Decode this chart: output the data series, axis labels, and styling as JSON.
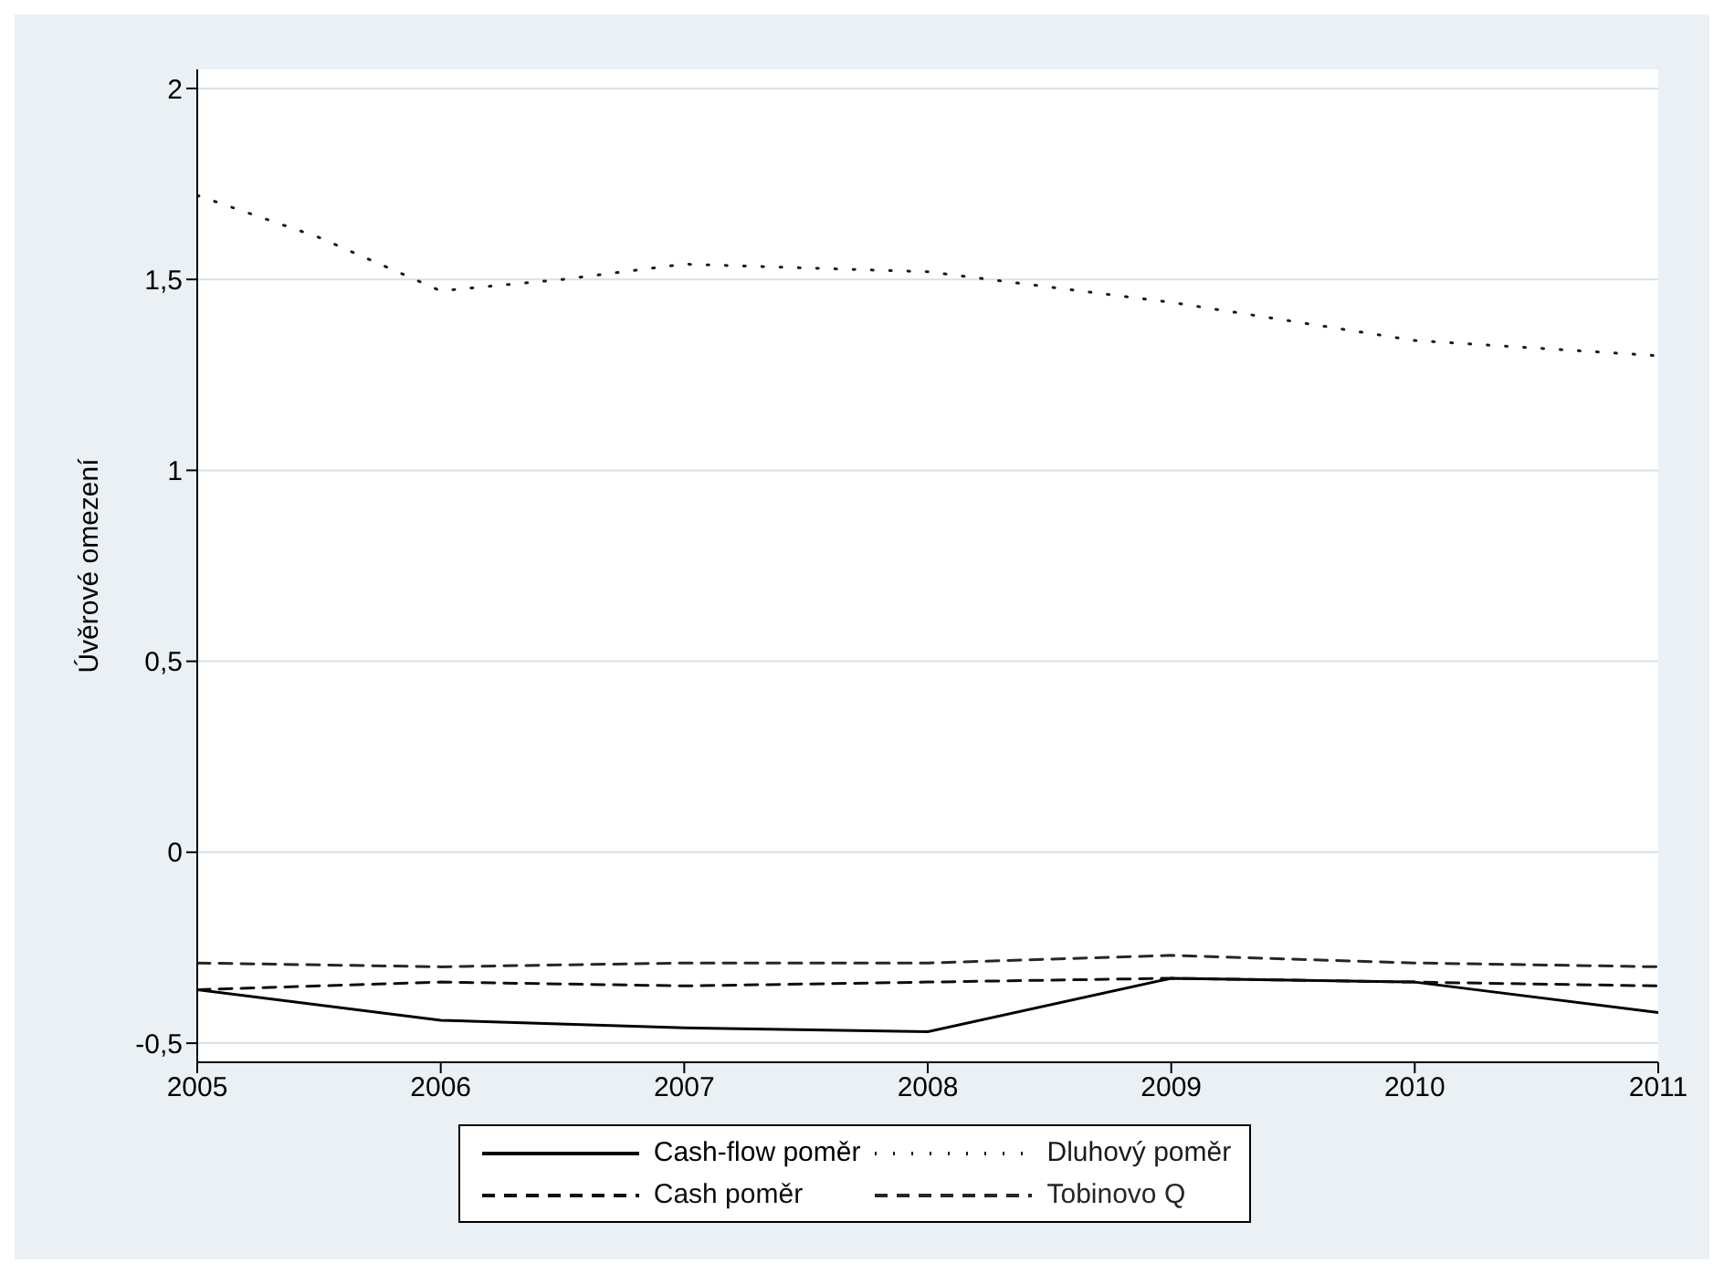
{
  "chart_data": {
    "type": "line",
    "ylabel": "Úvěrové omezení",
    "xlim": [
      2005,
      2011
    ],
    "xticks": [
      2005,
      2006,
      2007,
      2008,
      2009,
      2010,
      2011
    ],
    "ylim": [
      -0.55,
      2.05
    ],
    "yticks": [
      {
        "value": -0.5,
        "label": "-0,5"
      },
      0,
      {
        "value": 0.5,
        "label": "0,5"
      },
      1,
      {
        "value": 1.5,
        "label": "1,5"
      },
      2
    ],
    "grid": "y",
    "legend": "bottom",
    "marker": "none",
    "series": [
      {
        "name": "Cash-flow poměr",
        "color": "#000000",
        "line_style": "solid",
        "x": [
          2005,
          2006,
          2007,
          2008,
          2009,
          2010,
          2011
        ],
        "values": [
          -0.36,
          -0.44,
          -0.46,
          -0.47,
          -0.33,
          -0.34,
          -0.42
        ]
      },
      {
        "name": "Dluhový poměr",
        "color": "#1a1a1a",
        "line_style": "dotted",
        "x": [
          2005,
          2005.5,
          2006,
          2006.5,
          2007,
          2007.5,
          2008,
          2008.5,
          2009,
          2009.5,
          2010,
          2010.5,
          2011
        ],
        "values": [
          1.72,
          1.61,
          1.47,
          1.5,
          1.54,
          1.53,
          1.52,
          1.48,
          1.44,
          1.39,
          1.34,
          1.32,
          1.3
        ]
      },
      {
        "name": "Cash poměr",
        "color": "#0d0d0d",
        "line_style": "dashed",
        "x": [
          2005,
          2006,
          2007,
          2008,
          2009,
          2010,
          2011
        ],
        "values": [
          -0.36,
          -0.34,
          -0.35,
          -0.34,
          -0.33,
          -0.34,
          -0.35
        ]
      },
      {
        "name": "Tobinovo Q",
        "color": "#262626",
        "line_style": "dashed",
        "x": [
          2005,
          2006,
          2007,
          2008,
          2009,
          2010,
          2011
        ],
        "values": [
          -0.29,
          -0.3,
          -0.29,
          -0.29,
          -0.27,
          -0.29,
          -0.3
        ]
      }
    ]
  }
}
